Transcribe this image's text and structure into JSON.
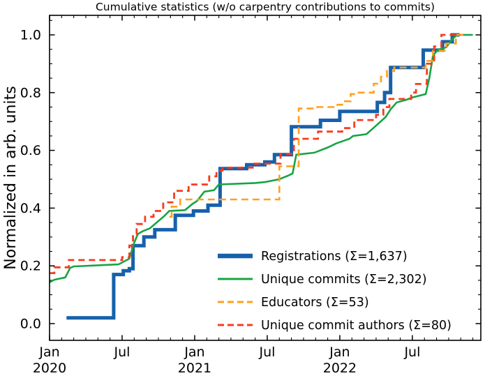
{
  "window": {
    "background": "#ffffff"
  },
  "chart_data": {
    "type": "line",
    "title": "Cumulative statistics (w/o carpentry contributions to commits)",
    "xlabel": "",
    "ylabel": "Normalized in arb. units",
    "grid": false,
    "legend_position": "lower-right-inside-frameless",
    "x_axis": {
      "unit": "months since Jan 2020",
      "max_m": 35.66,
      "minor_step": 1,
      "major_ticks": [
        {
          "m": 0,
          "label": "Jan",
          "year": "2020"
        },
        {
          "m": 6,
          "label": "Jul",
          "year": ""
        },
        {
          "m": 12,
          "label": "Jan",
          "year": "2021"
        },
        {
          "m": 18,
          "label": "Jul",
          "year": ""
        },
        {
          "m": 24,
          "label": "Jan",
          "year": "2022"
        },
        {
          "m": 30,
          "label": "Jul",
          "year": ""
        }
      ]
    },
    "y_axis": {
      "min": -0.053,
      "max": 1.068,
      "ticks": [
        0.0,
        0.2,
        0.4,
        0.6,
        0.8,
        1.0
      ],
      "minor_step": 0.05
    },
    "series": [
      {
        "name": "registrations",
        "legend_label": "Registrations  (Σ=1,637)",
        "color": "#1661ab",
        "line_width": 5,
        "dash": null,
        "draw": "steps",
        "points": [
          [
            1.4,
            0.02
          ],
          [
            5.3,
            0.17
          ],
          [
            6.1,
            0.183
          ],
          [
            6.6,
            0.19
          ],
          [
            6.9,
            0.27
          ],
          [
            7.8,
            0.3
          ],
          [
            8.7,
            0.325
          ],
          [
            10.4,
            0.375
          ],
          [
            11.9,
            0.39
          ],
          [
            13.1,
            0.41
          ],
          [
            14.1,
            0.537
          ],
          [
            16.3,
            0.55
          ],
          [
            17.8,
            0.56
          ],
          [
            18.6,
            0.585
          ],
          [
            20.0,
            0.682
          ],
          [
            22.4,
            0.704
          ],
          [
            24.0,
            0.735
          ],
          [
            27.1,
            0.766
          ],
          [
            27.7,
            0.8
          ],
          [
            28.2,
            0.887
          ],
          [
            30.9,
            0.947
          ],
          [
            32.5,
            0.976
          ],
          [
            33.3,
            1.0
          ],
          [
            33.9,
            1.0
          ]
        ]
      },
      {
        "name": "unique-commits",
        "legend_label": "Unique commits (Σ=2,302)",
        "color": "#17a443",
        "line_width": 2.6,
        "dash": null,
        "draw": "line",
        "points": [
          [
            0,
            0.143
          ],
          [
            0.4,
            0.152
          ],
          [
            1.3,
            0.16
          ],
          [
            1.7,
            0.193
          ],
          [
            2.0,
            0.198
          ],
          [
            5.7,
            0.205
          ],
          [
            6.6,
            0.225
          ],
          [
            7.0,
            0.28
          ],
          [
            7.3,
            0.31
          ],
          [
            7.7,
            0.32
          ],
          [
            8.3,
            0.33
          ],
          [
            9.5,
            0.373
          ],
          [
            9.9,
            0.39
          ],
          [
            11.2,
            0.393
          ],
          [
            11.8,
            0.414
          ],
          [
            12.2,
            0.425
          ],
          [
            12.8,
            0.457
          ],
          [
            13.6,
            0.462
          ],
          [
            14.0,
            0.482
          ],
          [
            17.0,
            0.487
          ],
          [
            17.8,
            0.49
          ],
          [
            19.0,
            0.5
          ],
          [
            19.7,
            0.512
          ],
          [
            20.1,
            0.52
          ],
          [
            20.4,
            0.585
          ],
          [
            21.9,
            0.592
          ],
          [
            23.0,
            0.61
          ],
          [
            23.7,
            0.624
          ],
          [
            24.8,
            0.64
          ],
          [
            25.1,
            0.65
          ],
          [
            26.2,
            0.656
          ],
          [
            26.9,
            0.682
          ],
          [
            27.8,
            0.716
          ],
          [
            28.2,
            0.742
          ],
          [
            28.7,
            0.766
          ],
          [
            29.5,
            0.775
          ],
          [
            30.0,
            0.783
          ],
          [
            31.1,
            0.795
          ],
          [
            31.4,
            0.85
          ],
          [
            31.7,
            0.928
          ],
          [
            32.1,
            0.948
          ],
          [
            32.8,
            0.957
          ],
          [
            33.3,
            0.985
          ],
          [
            33.7,
            1.0
          ],
          [
            35.0,
            1.0
          ]
        ]
      },
      {
        "name": "educators",
        "legend_label": "Educators (Σ=53)",
        "color": "#ffa01e",
        "line_width": 2.6,
        "dash": [
          10,
          6
        ],
        "draw": "steps",
        "points": [
          [
            9.9,
            0.37
          ],
          [
            10.1,
            0.405
          ],
          [
            10.8,
            0.43
          ],
          [
            19.0,
            0.545
          ],
          [
            20.6,
            0.745
          ],
          [
            21.9,
            0.75
          ],
          [
            23.8,
            0.758
          ],
          [
            24.2,
            0.77
          ],
          [
            24.9,
            0.795
          ],
          [
            25.3,
            0.8
          ],
          [
            26.8,
            0.831
          ],
          [
            27.4,
            0.855
          ],
          [
            27.9,
            0.875
          ],
          [
            28.5,
            0.887
          ],
          [
            31.1,
            0.91
          ],
          [
            31.7,
            0.945
          ],
          [
            32.8,
            0.97
          ],
          [
            33.6,
            1.0
          ],
          [
            34.3,
            1.0
          ]
        ]
      },
      {
        "name": "unique-commit-authors",
        "legend_label": "Unique commit authors (Σ=80)",
        "color": "#f63c1e",
        "line_width": 2.8,
        "dash": [
          9,
          6
        ],
        "draw": "steps",
        "points": [
          [
            0,
            0.175
          ],
          [
            0.4,
            0.195
          ],
          [
            1.6,
            0.22
          ],
          [
            6.0,
            0.23
          ],
          [
            6.6,
            0.27
          ],
          [
            6.9,
            0.31
          ],
          [
            7.2,
            0.345
          ],
          [
            7.9,
            0.37
          ],
          [
            8.6,
            0.39
          ],
          [
            9.4,
            0.42
          ],
          [
            10.3,
            0.46
          ],
          [
            11.5,
            0.482
          ],
          [
            13.2,
            0.51
          ],
          [
            13.8,
            0.53
          ],
          [
            14.3,
            0.54
          ],
          [
            16.8,
            0.554
          ],
          [
            19.1,
            0.588
          ],
          [
            20.2,
            0.64
          ],
          [
            22.2,
            0.665
          ],
          [
            24.2,
            0.677
          ],
          [
            25.2,
            0.705
          ],
          [
            27.0,
            0.723
          ],
          [
            27.6,
            0.75
          ],
          [
            28.1,
            0.778
          ],
          [
            29.9,
            0.8
          ],
          [
            30.3,
            0.83
          ],
          [
            31.2,
            0.9
          ],
          [
            31.8,
            0.96
          ],
          [
            32.4,
            1.0
          ],
          [
            34.0,
            1.0
          ]
        ]
      }
    ]
  }
}
